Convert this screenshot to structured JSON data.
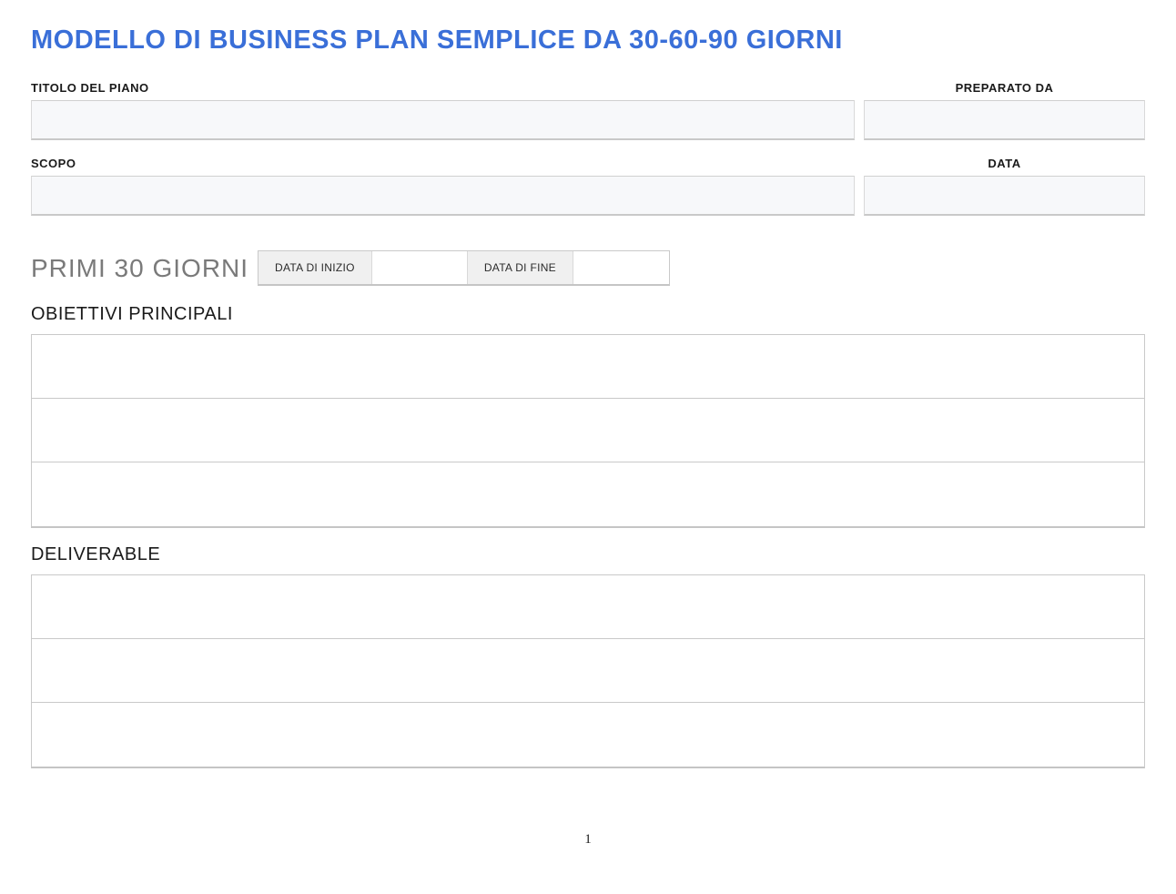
{
  "document": {
    "title": "MODELLO DI BUSINESS PLAN SEMPLICE DA 30-60-90 GIORNI",
    "page_number": "1"
  },
  "meta": {
    "plan_title_label": "TITOLO DEL PIANO",
    "plan_title_value": "",
    "prepared_by_label": "PREPARATO DA",
    "prepared_by_value": "",
    "scope_label": "SCOPO",
    "scope_value": "",
    "date_label": "DATA",
    "date_value": ""
  },
  "section_30": {
    "title": "PRIMI 30 GIORNI",
    "start_date_label": "DATA DI INIZIO",
    "start_date_value": "",
    "end_date_label": "DATA DI FINE",
    "end_date_value": "",
    "objectives_title": "OBIETTIVI PRINCIPALI",
    "objectives": [
      "",
      "",
      ""
    ],
    "deliverables_title": "DELIVERABLE",
    "deliverables": [
      "",
      "",
      ""
    ]
  },
  "styling": {
    "accent_color": "#3a6fd8",
    "section_title_color": "#7a7a7a",
    "input_bg": "#f7f8fa",
    "border_color": "#c9c9c9",
    "date_label_bg": "#f0f0f0",
    "body_bg": "#ffffff",
    "text_color": "#1a1a1a",
    "title_fontsize": 29,
    "section_title_fontsize": 28,
    "subsection_title_fontsize": 20,
    "meta_label_fontsize": 13
  }
}
